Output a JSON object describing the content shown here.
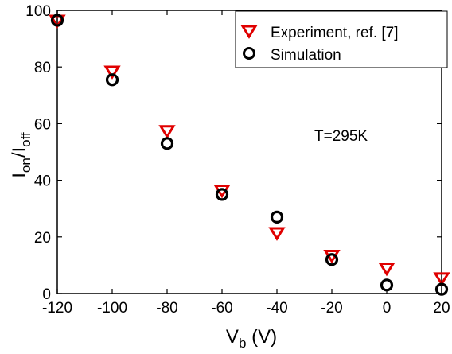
{
  "chart_data": {
    "type": "scatter",
    "xlabel_main": "V",
    "xlabel_sub": "b",
    "xlabel_unit": " (V)",
    "ylabel_main1": "I",
    "ylabel_sub1": "on",
    "ylabel_sep": "/I",
    "ylabel_sub2": "off",
    "xlim": [
      -120,
      20
    ],
    "ylim": [
      0,
      100
    ],
    "xticks": [
      -120,
      -100,
      -80,
      -60,
      -40,
      -20,
      0,
      20
    ],
    "yticks": [
      0,
      20,
      40,
      60,
      80,
      100
    ],
    "grid": false,
    "legend_position": "top-right",
    "annotation": "T=295K",
    "series": [
      {
        "name": "Experiment, ref. [7]",
        "marker": "triangle-down",
        "color": "#e00000",
        "x": [
          -120,
          -100,
          -80,
          -60,
          -40,
          -20,
          0,
          20
        ],
        "y": [
          96.5,
          78.5,
          57.5,
          36.5,
          21.5,
          13.5,
          9,
          5.5
        ]
      },
      {
        "name": "Simulation",
        "marker": "circle",
        "color": "#000000",
        "x": [
          -120,
          -100,
          -80,
          -60,
          -40,
          -20,
          0,
          20
        ],
        "y": [
          96.5,
          75.5,
          53,
          35,
          27,
          12,
          3,
          1.5
        ]
      }
    ]
  }
}
